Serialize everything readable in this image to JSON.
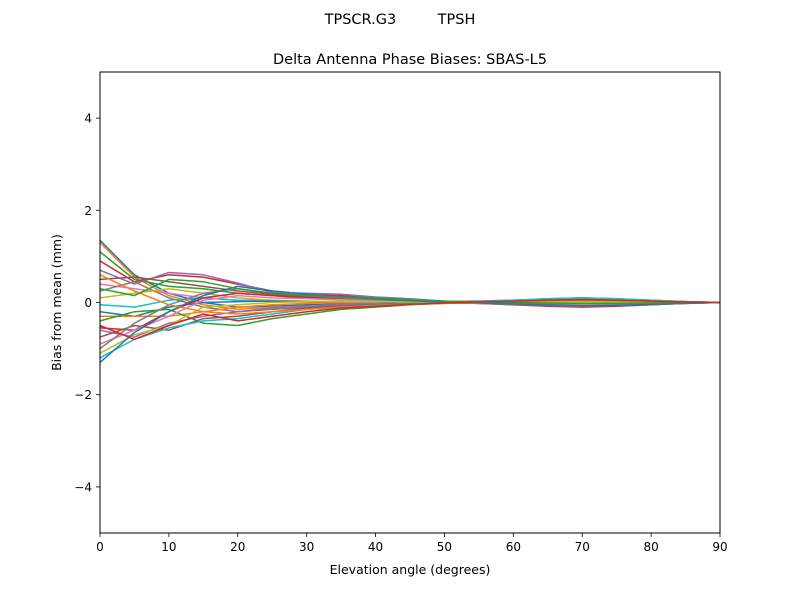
{
  "chart_data": {
    "type": "line",
    "suptitle": "TPSCR.G3         TPSH",
    "title": "Delta Antenna Phase Biases: SBAS-L5",
    "xlabel": "Elevation angle (degrees)",
    "ylabel": "Bias from mean (mm)",
    "xlim": [
      0,
      90
    ],
    "ylim": [
      -5,
      5
    ],
    "xticks": [
      0,
      10,
      20,
      30,
      40,
      50,
      60,
      70,
      80,
      90
    ],
    "xtick_labels": [
      "0",
      "10",
      "20",
      "30",
      "40",
      "50",
      "60",
      "70",
      "80",
      "90"
    ],
    "yticks": [
      -4,
      -2,
      0,
      2,
      4
    ],
    "ytick_labels": [
      "−4",
      "−2",
      "0",
      "2",
      "4"
    ],
    "grid": false,
    "legend": "none",
    "colors": [
      "#1f77b4",
      "#ff7f0e",
      "#2ca02c",
      "#d62728",
      "#9467bd",
      "#8c564b",
      "#e377c2",
      "#7f7f7f",
      "#bcbd22",
      "#17becf"
    ],
    "x": [
      0,
      5,
      10,
      15,
      20,
      25,
      30,
      35,
      40,
      45,
      50,
      55,
      60,
      65,
      70,
      75,
      80,
      85,
      90
    ],
    "series": [
      {
        "values": [
          1.35,
          0.6,
          0.2,
          0.0,
          -0.1,
          -0.08,
          -0.05,
          -0.03,
          -0.02,
          0,
          0.02,
          0.03,
          0.05,
          0.08,
          0.1,
          0.08,
          0.05,
          0.02,
          0
        ]
      },
      {
        "values": [
          1.3,
          0.55,
          0.15,
          -0.05,
          -0.15,
          -0.1,
          -0.08,
          -0.05,
          -0.03,
          -0.01,
          0,
          0.02,
          0.04,
          0.06,
          0.08,
          0.06,
          0.04,
          0.02,
          0
        ]
      },
      {
        "values": [
          1.1,
          0.5,
          0.35,
          0.3,
          0.2,
          0.15,
          0.1,
          0.08,
          0.05,
          0.03,
          0,
          -0.02,
          -0.04,
          -0.05,
          -0.06,
          -0.05,
          -0.03,
          -0.01,
          0
        ]
      },
      {
        "values": [
          0.9,
          0.45,
          0.6,
          0.55,
          0.4,
          0.25,
          0.18,
          0.15,
          0.1,
          0.06,
          0.02,
          0,
          -0.02,
          -0.03,
          -0.04,
          -0.03,
          -0.02,
          -0.01,
          0
        ]
      },
      {
        "values": [
          0.7,
          0.4,
          0.65,
          0.6,
          0.42,
          0.22,
          0.2,
          0.18,
          0.12,
          0.08,
          0.03,
          0.01,
          0,
          -0.02,
          -0.03,
          -0.03,
          -0.02,
          -0.01,
          0
        ]
      },
      {
        "values": [
          0.5,
          0.55,
          0.45,
          0.35,
          0.25,
          0.18,
          0.12,
          0.1,
          0.08,
          0.05,
          0.02,
          0.01,
          0.03,
          0.06,
          0.08,
          0.07,
          0.05,
          0.02,
          0
        ]
      },
      {
        "values": [
          0.4,
          0.3,
          0.2,
          0.1,
          0.05,
          0.05,
          0.02,
          0.01,
          0,
          0,
          0,
          0.01,
          0.02,
          0.03,
          0.04,
          0.03,
          0.02,
          0.01,
          0
        ]
      },
      {
        "values": [
          0.25,
          0.45,
          0.1,
          -0.1,
          -0.2,
          -0.15,
          -0.1,
          -0.06,
          -0.04,
          -0.02,
          0,
          0.01,
          0.02,
          0.04,
          0.05,
          0.04,
          0.03,
          0.01,
          0
        ]
      },
      {
        "values": [
          0.1,
          0.2,
          0.3,
          0.2,
          0.1,
          0.05,
          0.03,
          0.02,
          0.01,
          0,
          -0.01,
          -0.02,
          -0.04,
          -0.06,
          -0.08,
          -0.07,
          -0.05,
          -0.02,
          0
        ]
      },
      {
        "values": [
          -0.05,
          -0.1,
          0.05,
          0.1,
          0.05,
          0.02,
          0.01,
          0,
          0,
          0,
          0,
          0,
          0.01,
          0.02,
          0.03,
          0.02,
          0.01,
          0,
          0
        ]
      },
      {
        "values": [
          -0.2,
          -0.3,
          -0.1,
          0.0,
          0.02,
          0.03,
          0.02,
          0.01,
          0.01,
          0,
          0,
          -0.01,
          -0.02,
          -0.03,
          -0.02,
          -0.02,
          -0.01,
          0,
          0
        ]
      },
      {
        "values": [
          -0.3,
          -0.3,
          -0.3,
          -0.2,
          -0.1,
          -0.05,
          -0.02,
          0,
          0.01,
          0.02,
          0.01,
          0,
          -0.01,
          -0.02,
          -0.03,
          -0.02,
          -0.01,
          0,
          0
        ]
      },
      {
        "values": [
          -0.4,
          -0.2,
          -0.15,
          -0.45,
          -0.5,
          -0.35,
          -0.25,
          -0.15,
          -0.1,
          -0.05,
          -0.02,
          0,
          0.02,
          0.04,
          0.05,
          0.04,
          0.03,
          0.01,
          0
        ]
      },
      {
        "values": [
          -0.55,
          -0.6,
          -0.2,
          0.1,
          0.2,
          0.15,
          0.1,
          0.08,
          0.05,
          0.02,
          0,
          -0.02,
          -0.05,
          -0.08,
          -0.1,
          -0.08,
          -0.05,
          -0.02,
          0
        ]
      },
      {
        "values": [
          -0.6,
          -0.75,
          -0.45,
          -0.3,
          -0.2,
          -0.12,
          -0.08,
          -0.05,
          -0.03,
          -0.01,
          0,
          0.01,
          0.03,
          0.05,
          0.06,
          0.05,
          0.03,
          0.01,
          0
        ]
      },
      {
        "values": [
          -0.75,
          -0.5,
          -0.6,
          -0.35,
          -0.3,
          -0.2,
          -0.12,
          -0.08,
          -0.05,
          -0.02,
          0,
          0.02,
          0.04,
          0.06,
          0.07,
          0.05,
          0.03,
          0.01,
          0
        ]
      },
      {
        "values": [
          -0.9,
          -0.6,
          -0.3,
          0.05,
          0.15,
          0.1,
          0.08,
          0.06,
          0.04,
          0.02,
          0,
          -0.01,
          -0.03,
          -0.05,
          -0.06,
          -0.05,
          -0.03,
          -0.01,
          0
        ]
      },
      {
        "values": [
          -1.0,
          -0.45,
          -0.05,
          0.2,
          0.3,
          0.2,
          0.15,
          0.1,
          0.06,
          0.03,
          0,
          -0.02,
          -0.04,
          -0.06,
          -0.08,
          -0.06,
          -0.04,
          -0.02,
          0
        ]
      },
      {
        "values": [
          -1.1,
          -0.7,
          -0.5,
          -0.1,
          -0.05,
          0,
          0.02,
          0.03,
          0.02,
          0.01,
          0,
          0,
          0.01,
          0.02,
          0.02,
          0.02,
          0.01,
          0,
          0
        ]
      },
      {
        "values": [
          -1.2,
          -0.8,
          -0.55,
          -0.4,
          -0.35,
          -0.25,
          -0.15,
          -0.1,
          -0.06,
          -0.03,
          0,
          0.02,
          0.05,
          0.08,
          0.1,
          0.08,
          0.05,
          0.02,
          0
        ]
      },
      {
        "values": [
          -1.3,
          -0.65,
          -0.2,
          0.15,
          0.35,
          0.25,
          0.18,
          0.12,
          0.08,
          0.04,
          0.01,
          -0.01,
          -0.03,
          -0.05,
          -0.07,
          -0.06,
          -0.04,
          -0.02,
          0
        ]
      },
      {
        "values": [
          0.6,
          0.25,
          -0.05,
          -0.2,
          -0.25,
          -0.2,
          -0.15,
          -0.1,
          -0.07,
          -0.04,
          -0.02,
          0,
          0.02,
          0.04,
          0.05,
          0.04,
          0.03,
          0.01,
          0
        ]
      },
      {
        "values": [
          0.3,
          0.15,
          0.5,
          0.45,
          0.3,
          0.2,
          0.15,
          0.12,
          0.1,
          0.06,
          0.03,
          0.01,
          0,
          -0.01,
          -0.02,
          -0.02,
          -0.01,
          0,
          0
        ]
      },
      {
        "values": [
          -0.5,
          -0.8,
          -0.5,
          -0.25,
          -0.4,
          -0.3,
          -0.2,
          -0.12,
          -0.08,
          -0.04,
          -0.01,
          0.01,
          0.03,
          0.05,
          0.06,
          0.05,
          0.03,
          0.01,
          0
        ]
      }
    ]
  }
}
